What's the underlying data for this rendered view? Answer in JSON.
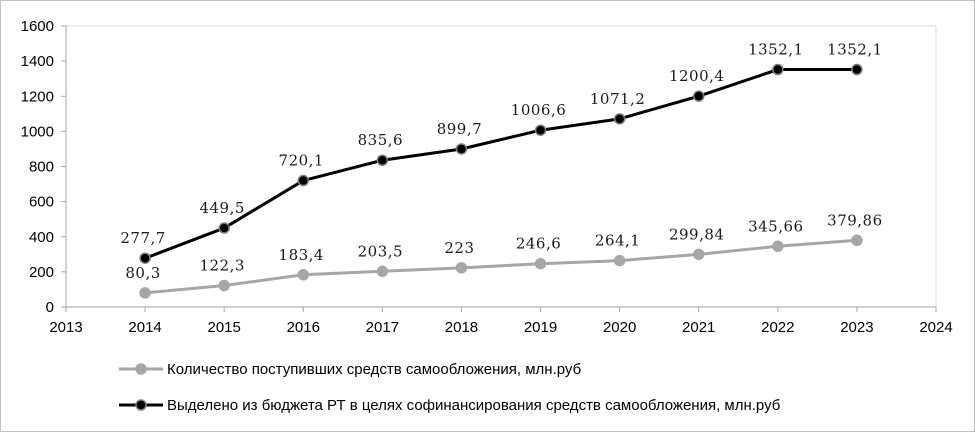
{
  "chart_data": {
    "type": "line",
    "title": "",
    "xlabel": "",
    "ylabel": "",
    "xlim": [
      2013,
      2024
    ],
    "ylim": [
      0,
      1600
    ],
    "x_ticks": [
      2013,
      2014,
      2015,
      2016,
      2017,
      2018,
      2019,
      2020,
      2021,
      2022,
      2023,
      2024
    ],
    "y_ticks": [
      0,
      200,
      400,
      600,
      800,
      1000,
      1200,
      1400,
      1600
    ],
    "grid": false,
    "legend_position": "bottom",
    "series": [
      {
        "name": "Количество поступивших средств самообложения, млн.руб",
        "color": "#a6a6a6",
        "marker_fill": "#a6a6a6",
        "marker_stroke": "#a6a6a6",
        "x": [
          2014,
          2015,
          2016,
          2017,
          2018,
          2019,
          2020,
          2021,
          2022,
          2023
        ],
        "y": [
          80.3,
          122.3,
          183.4,
          203.5,
          223,
          246.6,
          264.1,
          299.84,
          345.66,
          379.86
        ],
        "labels": [
          "80,3",
          "122,3",
          "183,4",
          "203,5",
          "223",
          "246,6",
          "264,1",
          "299,84",
          "345,66",
          "379,86"
        ]
      },
      {
        "name": "Выделено из бюджета РТ в целях софинансирования средств самообложения, млн.руб",
        "color": "#000000",
        "marker_fill": "#000000",
        "marker_stroke": "#7f7f7f",
        "x": [
          2014,
          2015,
          2016,
          2017,
          2018,
          2019,
          2020,
          2021,
          2022,
          2023
        ],
        "y": [
          277.7,
          449.5,
          720.1,
          835.6,
          899.7,
          1006.6,
          1071.2,
          1200.4,
          1352.1,
          1352.1
        ],
        "labels": [
          "277,7",
          "449,5",
          "720,1",
          "835,6",
          "899,7",
          "1006,6",
          "1071,2",
          "1200,4",
          "1352,1",
          "1352,1"
        ]
      }
    ]
  }
}
